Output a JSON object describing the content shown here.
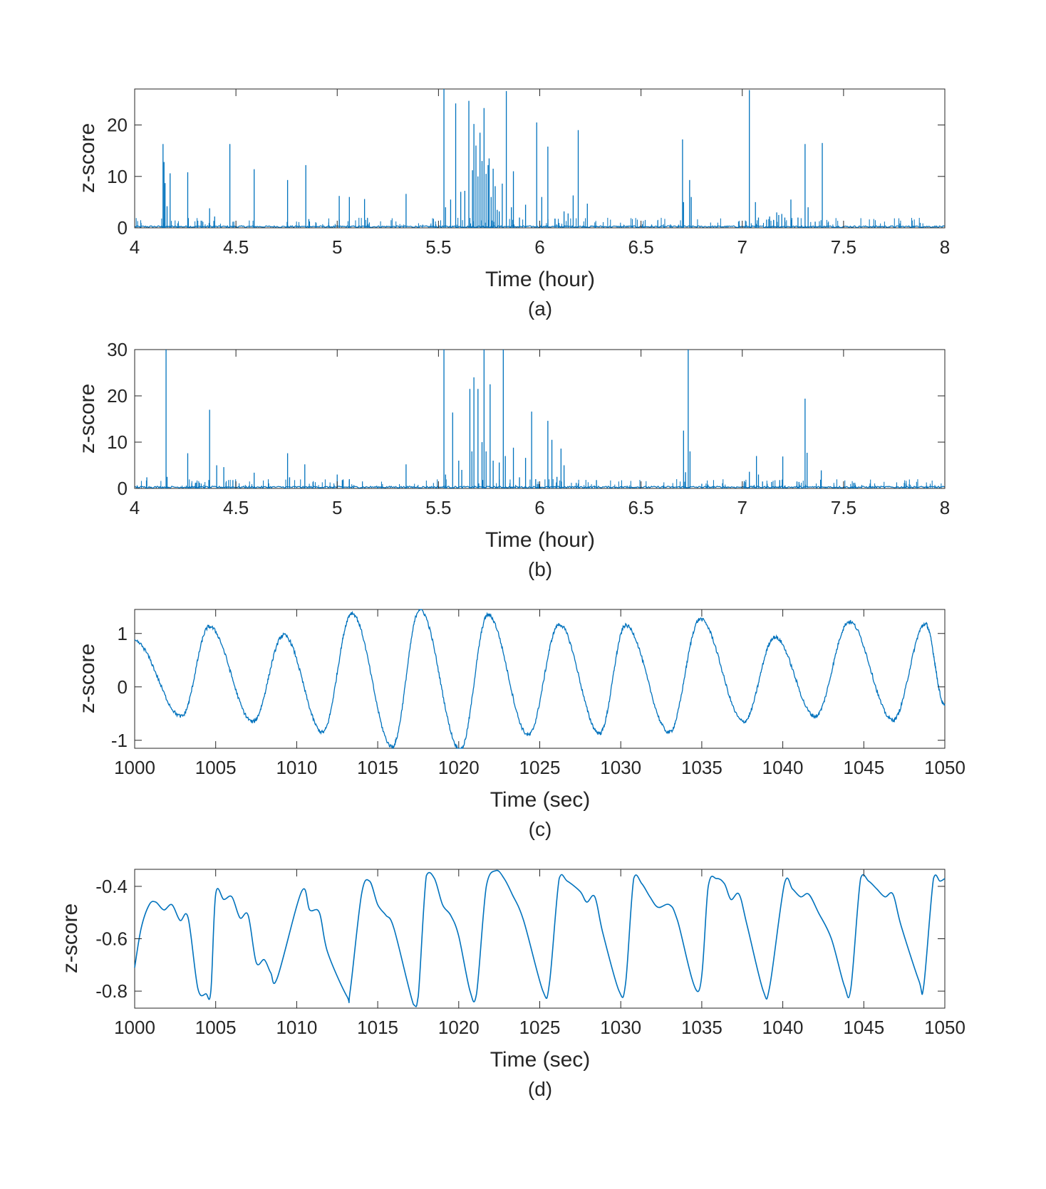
{
  "chart_data": [
    {
      "panel_id": "a",
      "type": "line",
      "xlabel": "Time (hour)",
      "ylabel": "z-score",
      "caption": "(a)",
      "xlim": [
        4,
        8
      ],
      "ylim": [
        0,
        27
      ],
      "xticks": [
        4,
        4.5,
        5,
        5.5,
        6,
        6.5,
        7,
        7.5,
        8
      ],
      "xtick_labels": [
        "4",
        "4.5",
        "5",
        "5.5",
        "6",
        "6.5",
        "7",
        "7.5",
        "8"
      ],
      "yticks": [
        0,
        10,
        20
      ],
      "ytick_labels": [
        "0",
        "10",
        "20"
      ],
      "color": "#0072BD",
      "baseline": 0.25,
      "spikes": [
        [
          4.14,
          16.3
        ],
        [
          4.145,
          12.8
        ],
        [
          4.15,
          8.7
        ],
        [
          4.16,
          4.2
        ],
        [
          4.175,
          10.6
        ],
        [
          4.262,
          10.8
        ],
        [
          4.37,
          3.8
        ],
        [
          4.395,
          2.2
        ],
        [
          4.47,
          16.3
        ],
        [
          4.59,
          11.4
        ],
        [
          4.755,
          9.3
        ],
        [
          4.845,
          12.2
        ],
        [
          4.86,
          1.7
        ],
        [
          5.01,
          6.2
        ],
        [
          5.06,
          6.0
        ],
        [
          5.135,
          5.6
        ],
        [
          5.34,
          6.6
        ],
        [
          5.527,
          27.0
        ],
        [
          5.535,
          4.0
        ],
        [
          5.56,
          5.5
        ],
        [
          5.585,
          24.2
        ],
        [
          5.61,
          7.0
        ],
        [
          5.63,
          7.2
        ],
        [
          5.65,
          24.7
        ],
        [
          5.668,
          11.2
        ],
        [
          5.675,
          20.2
        ],
        [
          5.685,
          16.0
        ],
        [
          5.695,
          10.0
        ],
        [
          5.705,
          18.5
        ],
        [
          5.715,
          13.0
        ],
        [
          5.725,
          23.3
        ],
        [
          5.735,
          10.5
        ],
        [
          5.745,
          12.2
        ],
        [
          5.75,
          13.5
        ],
        [
          5.76,
          6.0
        ],
        [
          5.77,
          11.5
        ],
        [
          5.78,
          8.1
        ],
        [
          5.79,
          3.5
        ],
        [
          5.8,
          3.2
        ],
        [
          5.815,
          8.6
        ],
        [
          5.835,
          26.6
        ],
        [
          5.86,
          4.0
        ],
        [
          5.87,
          11.0
        ],
        [
          5.9,
          2.0
        ],
        [
          5.93,
          4.5
        ],
        [
          5.985,
          20.5
        ],
        [
          6.01,
          6.0
        ],
        [
          6.04,
          15.8
        ],
        [
          6.075,
          1.8
        ],
        [
          6.12,
          3.2
        ],
        [
          6.14,
          2.8
        ],
        [
          6.165,
          6.3
        ],
        [
          6.19,
          19.0
        ],
        [
          6.235,
          4.7
        ],
        [
          6.705,
          17.2
        ],
        [
          6.71,
          5.0
        ],
        [
          6.74,
          9.3
        ],
        [
          6.748,
          6.0
        ],
        [
          7.035,
          26.8
        ],
        [
          7.065,
          5.0
        ],
        [
          7.08,
          2.0
        ],
        [
          7.12,
          1.6
        ],
        [
          7.135,
          2.2
        ],
        [
          7.155,
          1.5
        ],
        [
          7.17,
          3.0
        ],
        [
          7.18,
          2.5
        ],
        [
          7.195,
          2.7
        ],
        [
          7.21,
          2.0
        ],
        [
          7.24,
          5.5
        ],
        [
          7.275,
          2.0
        ],
        [
          7.31,
          16.3
        ],
        [
          7.325,
          4.0
        ],
        [
          7.395,
          16.5
        ],
        [
          7.36,
          1.2
        ]
      ]
    },
    {
      "panel_id": "b",
      "type": "line",
      "xlabel": "Time (hour)",
      "ylabel": "z-score",
      "caption": "(b)",
      "xlim": [
        4,
        8
      ],
      "ylim": [
        0,
        30
      ],
      "xticks": [
        4,
        4.5,
        5,
        5.5,
        6,
        6.5,
        7,
        7.5,
        8
      ],
      "xtick_labels": [
        "4",
        "4.5",
        "5",
        "5.5",
        "6",
        "6.5",
        "7",
        "7.5",
        "8"
      ],
      "yticks": [
        0,
        10,
        20,
        30
      ],
      "ytick_labels": [
        "0",
        "10",
        "20",
        "30"
      ],
      "color": "#0072BD",
      "baseline": 0.3,
      "spikes": [
        [
          4.06,
          2.4
        ],
        [
          4.155,
          30.0
        ],
        [
          4.16,
          2.5
        ],
        [
          4.262,
          7.6
        ],
        [
          4.3,
          1.2
        ],
        [
          4.32,
          1.2
        ],
        [
          4.37,
          17.0
        ],
        [
          4.405,
          5.0
        ],
        [
          4.44,
          4.6
        ],
        [
          4.485,
          1.8
        ],
        [
          4.59,
          3.4
        ],
        [
          4.755,
          7.6
        ],
        [
          4.765,
          2.4
        ],
        [
          4.84,
          5.2
        ],
        [
          5.0,
          3.0
        ],
        [
          5.025,
          1.8
        ],
        [
          5.06,
          2.0
        ],
        [
          5.34,
          5.2
        ],
        [
          5.527,
          30.0
        ],
        [
          5.535,
          3.0
        ],
        [
          5.57,
          16.4
        ],
        [
          5.6,
          6.0
        ],
        [
          5.615,
          4.0
        ],
        [
          5.655,
          21.5
        ],
        [
          5.665,
          8.0
        ],
        [
          5.675,
          24.0
        ],
        [
          5.695,
          21.5
        ],
        [
          5.715,
          10.0
        ],
        [
          5.725,
          30.0
        ],
        [
          5.735,
          8.0
        ],
        [
          5.755,
          22.5
        ],
        [
          5.77,
          6.0
        ],
        [
          5.8,
          5.6
        ],
        [
          5.82,
          30.0
        ],
        [
          5.83,
          7.0
        ],
        [
          5.87,
          8.8
        ],
        [
          5.9,
          2.4
        ],
        [
          5.93,
          6.6
        ],
        [
          5.96,
          16.6
        ],
        [
          5.98,
          2.0
        ],
        [
          6.04,
          14.6
        ],
        [
          6.06,
          10.5
        ],
        [
          6.085,
          2.5
        ],
        [
          6.105,
          8.6
        ],
        [
          6.12,
          5.0
        ],
        [
          6.18,
          1.2
        ],
        [
          6.28,
          1.8
        ],
        [
          6.71,
          12.5
        ],
        [
          6.72,
          3.5
        ],
        [
          6.733,
          30.0
        ],
        [
          6.742,
          8.0
        ],
        [
          6.8,
          1.0
        ],
        [
          7.01,
          1.6
        ],
        [
          7.035,
          3.6
        ],
        [
          7.07,
          7.0
        ],
        [
          7.08,
          3.0
        ],
        [
          7.1,
          1.5
        ],
        [
          7.145,
          1.4
        ],
        [
          7.185,
          1.8
        ],
        [
          7.2,
          6.9
        ],
        [
          7.27,
          1.5
        ],
        [
          7.28,
          1.4
        ],
        [
          7.31,
          19.4
        ],
        [
          7.32,
          7.7
        ],
        [
          7.39,
          3.9
        ],
        [
          7.55,
          1.2
        ],
        [
          7.8,
          1.2
        ]
      ]
    },
    {
      "panel_id": "c",
      "type": "line",
      "xlabel": "Time (sec)",
      "ylabel": "z-score",
      "caption": "(c)",
      "xlim": [
        1000,
        1050
      ],
      "ylim": [
        -1.15,
        1.45
      ],
      "xticks": [
        1000,
        1005,
        1010,
        1015,
        1020,
        1025,
        1030,
        1035,
        1040,
        1045,
        1050
      ],
      "xtick_labels": [
        "1000",
        "1005",
        "1010",
        "1015",
        "1020",
        "1025",
        "1030",
        "1035",
        "1040",
        "1045",
        "1050"
      ],
      "yticks": [
        -1,
        0,
        1
      ],
      "ytick_labels": [
        "-1",
        "0",
        "1"
      ],
      "color": "#0072BD",
      "start_value": 0.85,
      "end_value": -0.35,
      "troughs": [
        [
          1002.9,
          -0.55
        ],
        [
          1007.3,
          -0.65
        ],
        [
          1011.6,
          -0.85
        ],
        [
          1015.9,
          -1.12
        ],
        [
          1020.1,
          -1.18
        ],
        [
          1024.3,
          -0.9
        ],
        [
          1028.7,
          -0.87
        ],
        [
          1033.0,
          -0.85
        ],
        [
          1037.6,
          -0.65
        ],
        [
          1042.0,
          -0.55
        ],
        [
          1046.8,
          -0.62
        ]
      ],
      "peaks": [
        [
          1004.6,
          1.13
        ],
        [
          1009.2,
          0.97
        ],
        [
          1013.4,
          1.38
        ],
        [
          1017.6,
          1.45
        ],
        [
          1021.8,
          1.35
        ],
        [
          1026.2,
          1.17
        ],
        [
          1030.3,
          1.15
        ],
        [
          1034.9,
          1.27
        ],
        [
          1039.5,
          0.93
        ],
        [
          1044.1,
          1.22
        ],
        [
          1048.8,
          1.18
        ]
      ]
    },
    {
      "panel_id": "d",
      "type": "line",
      "xlabel": "Time (sec)",
      "ylabel": "z-score",
      "caption": "(d)",
      "xlim": [
        1000,
        1050
      ],
      "ylim": [
        -0.865,
        -0.335
      ],
      "xticks": [
        1000,
        1005,
        1010,
        1015,
        1020,
        1025,
        1030,
        1035,
        1040,
        1045,
        1050
      ],
      "xtick_labels": [
        "1000",
        "1005",
        "1010",
        "1015",
        "1020",
        "1025",
        "1030",
        "1035",
        "1040",
        "1045",
        "1050"
      ],
      "yticks": [
        -0.8,
        -0.6,
        -0.4
      ],
      "ytick_labels": [
        "-0.8",
        "-0.6",
        "-0.4"
      ],
      "color": "#0072BD",
      "trace": [
        [
          1000,
          -0.71
        ],
        [
          1000.4,
          -0.56
        ],
        [
          1000.9,
          -0.47
        ],
        [
          1001.3,
          -0.46
        ],
        [
          1001.8,
          -0.49
        ],
        [
          1002.3,
          -0.47
        ],
        [
          1002.8,
          -0.53
        ],
        [
          1003.3,
          -0.52
        ],
        [
          1003.9,
          -0.79
        ],
        [
          1004.4,
          -0.81
        ],
        [
          1004.7,
          -0.8
        ],
        [
          1005.0,
          -0.43
        ],
        [
          1005.5,
          -0.45
        ],
        [
          1006.0,
          -0.44
        ],
        [
          1006.5,
          -0.52
        ],
        [
          1007.0,
          -0.51
        ],
        [
          1007.5,
          -0.69
        ],
        [
          1008.0,
          -0.68
        ],
        [
          1008.4,
          -0.73
        ],
        [
          1008.8,
          -0.75
        ],
        [
          1010.3,
          -0.42
        ],
        [
          1010.8,
          -0.49
        ],
        [
          1011.4,
          -0.5
        ],
        [
          1011.9,
          -0.65
        ],
        [
          1013.1,
          -0.82
        ],
        [
          1013.3,
          -0.8
        ],
        [
          1014.0,
          -0.43
        ],
        [
          1014.5,
          -0.38
        ],
        [
          1015.0,
          -0.47
        ],
        [
          1015.5,
          -0.51
        ],
        [
          1016.0,
          -0.56
        ],
        [
          1017.2,
          -0.85
        ],
        [
          1017.5,
          -0.82
        ],
        [
          1018.0,
          -0.36
        ],
        [
          1018.5,
          -0.37
        ],
        [
          1019.0,
          -0.47
        ],
        [
          1019.5,
          -0.51
        ],
        [
          1020.0,
          -0.59
        ],
        [
          1020.7,
          -0.8
        ],
        [
          1021.1,
          -0.81
        ],
        [
          1021.7,
          -0.4
        ],
        [
          1022.3,
          -0.34
        ],
        [
          1022.8,
          -0.37
        ],
        [
          1023.3,
          -0.43
        ],
        [
          1024.0,
          -0.53
        ],
        [
          1025.2,
          -0.8
        ],
        [
          1025.6,
          -0.77
        ],
        [
          1026.2,
          -0.37
        ],
        [
          1026.7,
          -0.38
        ],
        [
          1027.5,
          -0.42
        ],
        [
          1027.9,
          -0.46
        ],
        [
          1028.4,
          -0.44
        ],
        [
          1028.9,
          -0.58
        ],
        [
          1029.9,
          -0.8
        ],
        [
          1030.3,
          -0.77
        ],
        [
          1030.8,
          -0.37
        ],
        [
          1031.3,
          -0.39
        ],
        [
          1031.8,
          -0.44
        ],
        [
          1032.3,
          -0.48
        ],
        [
          1033.0,
          -0.47
        ],
        [
          1033.5,
          -0.53
        ],
        [
          1034.8,
          -0.8
        ],
        [
          1035.4,
          -0.4
        ],
        [
          1035.9,
          -0.37
        ],
        [
          1036.4,
          -0.39
        ],
        [
          1036.8,
          -0.45
        ],
        [
          1037.3,
          -0.43
        ],
        [
          1037.8,
          -0.55
        ],
        [
          1038.8,
          -0.8
        ],
        [
          1039.2,
          -0.78
        ],
        [
          1040.1,
          -0.39
        ],
        [
          1040.6,
          -0.41
        ],
        [
          1041.1,
          -0.44
        ],
        [
          1041.6,
          -0.43
        ],
        [
          1042.2,
          -0.5
        ],
        [
          1043.0,
          -0.6
        ],
        [
          1043.8,
          -0.78
        ],
        [
          1044.2,
          -0.79
        ],
        [
          1044.8,
          -0.37
        ],
        [
          1045.3,
          -0.38
        ],
        [
          1045.8,
          -0.41
        ],
        [
          1046.3,
          -0.44
        ],
        [
          1046.8,
          -0.43
        ],
        [
          1047.3,
          -0.55
        ],
        [
          1048.4,
          -0.76
        ],
        [
          1048.7,
          -0.78
        ],
        [
          1049.3,
          -0.37
        ],
        [
          1049.7,
          -0.38
        ],
        [
          1050,
          -0.37
        ]
      ]
    }
  ]
}
